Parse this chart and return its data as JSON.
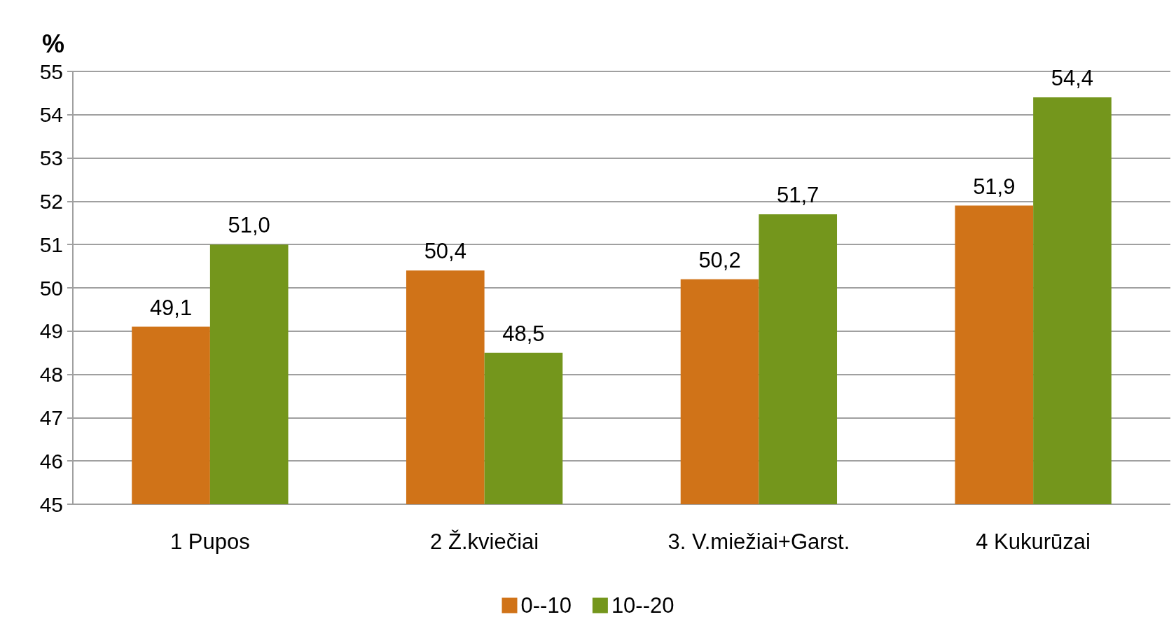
{
  "chart_data": {
    "type": "bar",
    "ylabel": "%",
    "categories": [
      "1 Pupos",
      "2 Ž.kviečiai",
      "3. V.miežiai+Garst.",
      "4 Kukurūzai"
    ],
    "series": [
      {
        "name": "0--10",
        "color": "#d07318",
        "values": [
          49.1,
          50.4,
          50.2,
          51.9
        ],
        "value_labels": [
          "49,1",
          "50,4",
          "50,2",
          "51,9"
        ]
      },
      {
        "name": "10--20",
        "color": "#74961c",
        "values": [
          51.0,
          48.5,
          51.7,
          54.4
        ],
        "value_labels": [
          "51,0",
          "48,5",
          "51,7",
          "54,4"
        ]
      }
    ],
    "ylim": [
      45,
      55
    ],
    "yticks": [
      45,
      46,
      47,
      48,
      49,
      50,
      51,
      52,
      53,
      54,
      55
    ],
    "grid": "y",
    "legend": "bottom"
  }
}
